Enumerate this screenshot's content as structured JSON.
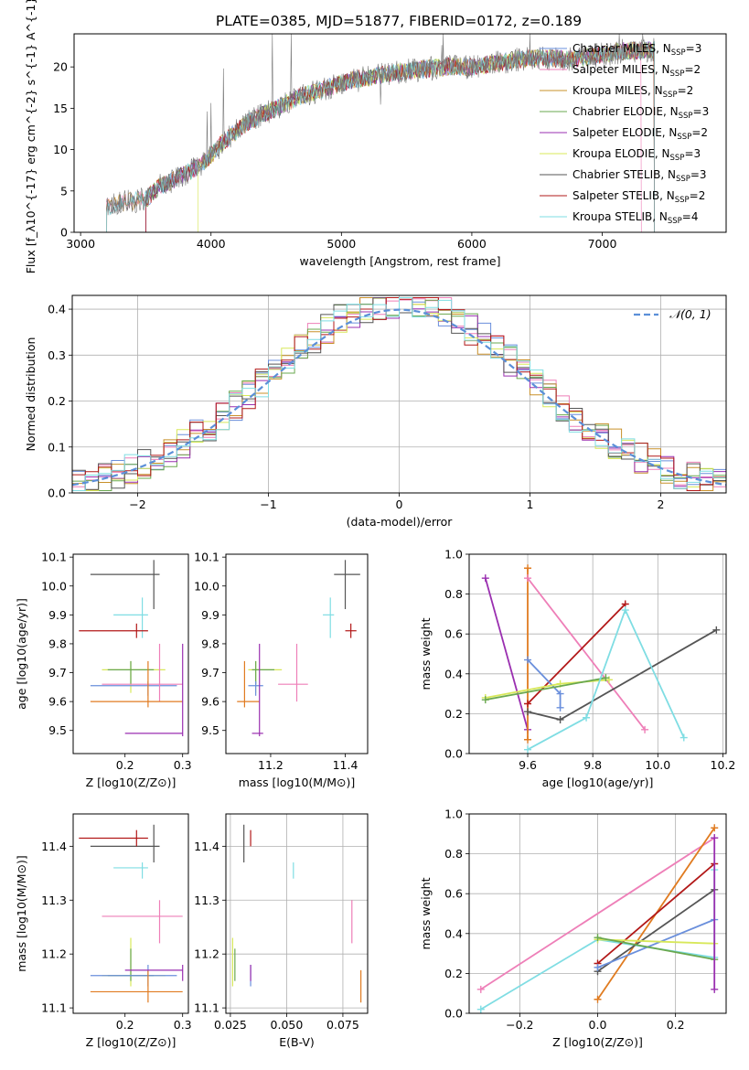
{
  "figure_title": "PLATE=0385, MJD=51877, FIBERID=0172, z=0.189",
  "colors": {
    "Chabrier MILES": "#6a8fdc",
    "Salpeter MILES": "#ee7fb8",
    "Kroupa MILES": "#c8902a",
    "Chabrier ELODIE": "#6aa84f",
    "Salpeter ELODIE": "#9a2fb0",
    "Kroupa ELODIE": "#d8e85a",
    "Chabrier STELIB": "#555555",
    "Salpeter STELIB": "#b21818",
    "Kroupa STELIB": "#7fdde3",
    "normal_curve": "#5b8fd8",
    "orange": "#e07b20"
  },
  "chart_data": [
    {
      "type": "line",
      "name": "spectrum",
      "xlabel": "wavelength [Angstrom, rest frame]",
      "ylabel": "Flux [f_λ10^{-17} erg cm^{-2} s^{-1} A^{-1}]",
      "xlim": [
        2950,
        7950
      ],
      "ylim": [
        0,
        24
      ],
      "xticks": [
        3000,
        4000,
        5000,
        6000,
        7000
      ],
      "yticks": [
        0,
        5,
        10,
        15,
        20
      ],
      "grid": false,
      "legend_position": "right",
      "legend": [
        {
          "label": "Chabrier MILES, N",
          "sub": "SSP",
          "suffix": "=3"
        },
        {
          "label": "Salpeter MILES, N",
          "sub": "SSP",
          "suffix": "=2"
        },
        {
          "label": "Kroupa MILES, N",
          "sub": "SSP",
          "suffix": "=2"
        },
        {
          "label": "Chabrier ELODIE, N",
          "sub": "SSP",
          "suffix": "=3"
        },
        {
          "label": "Salpeter ELODIE, N",
          "sub": "SSP",
          "suffix": "=2"
        },
        {
          "label": "Kroupa ELODIE, N",
          "sub": "SSP",
          "suffix": "=3"
        },
        {
          "label": "Chabrier STELIB, N",
          "sub": "SSP",
          "suffix": "=3"
        },
        {
          "label": "Salpeter STELIB, N",
          "sub": "SSP",
          "suffix": "=2"
        },
        {
          "label": "Kroupa STELIB, N",
          "sub": "SSP",
          "suffix": "=4"
        }
      ],
      "continuum": [
        [
          3200,
          3.0
        ],
        [
          3300,
          3.5
        ],
        [
          3500,
          4.0
        ],
        [
          3600,
          5.5
        ],
        [
          3800,
          7.0
        ],
        [
          3950,
          8.5
        ],
        [
          4100,
          11.0
        ],
        [
          4300,
          13.5
        ],
        [
          4500,
          15.0
        ],
        [
          4700,
          16.5
        ],
        [
          4900,
          17.5
        ],
        [
          5100,
          18.5
        ],
        [
          5300,
          19.0
        ],
        [
          5500,
          19.5
        ],
        [
          5800,
          20.0
        ],
        [
          6000,
          20.0
        ],
        [
          6200,
          20.5
        ],
        [
          6400,
          21.0
        ],
        [
          6600,
          21.0
        ],
        [
          6800,
          21.0
        ],
        [
          7000,
          21.5
        ],
        [
          7200,
          22.0
        ],
        [
          7400,
          22.0
        ]
      ],
      "model_ranges": [
        [
          3500,
          7400
        ],
        [
          3200,
          7300
        ],
        [
          3200,
          7400
        ],
        [
          3500,
          7400
        ],
        [
          3500,
          7400
        ],
        [
          3900,
          7400
        ],
        [
          3200,
          7400
        ],
        [
          3500,
          7400
        ],
        [
          3200,
          7400
        ]
      ]
    },
    {
      "type": "bar",
      "name": "residuals",
      "xlabel": "(data-model)/error",
      "ylabel": "Normed distribution",
      "xlim": [
        -2.5,
        2.5
      ],
      "ylim": [
        0,
        0.43
      ],
      "xticks": [
        -2,
        -1,
        0,
        1,
        2
      ],
      "yticks": [
        0.0,
        0.1,
        0.2,
        0.3,
        0.4
      ],
      "grid": true,
      "legend_position": "top-right",
      "curve_label": "N(0,1)",
      "bin_width": 0.1
    },
    {
      "type": "scatter",
      "name": "age_vs_Z",
      "xlabel": "Z [log10(Z/Z⊙)]",
      "ylabel": "age  [log10(age/yr)]",
      "xlim": [
        0.11,
        0.31
      ],
      "ylim": [
        9.42,
        10.11
      ],
      "xticks": [
        0.2,
        0.3
      ],
      "yticks": [
        9.5,
        9.6,
        9.7,
        9.8,
        9.9,
        10.0,
        10.1
      ],
      "grid": false
    },
    {
      "type": "scatter",
      "name": "age_vs_mass",
      "xlabel": "mass [log10(M/M⊙)]",
      "ylim": [
        9.42,
        10.11
      ],
      "xlim": [
        11.08,
        11.46
      ],
      "xticks": [
        11.2,
        11.4
      ],
      "yticks": [
        9.5,
        9.6,
        9.7,
        9.8,
        9.9,
        10.0,
        10.1
      ],
      "grid": false
    },
    {
      "type": "line",
      "name": "mass_weight_vs_age",
      "xlabel": "age  [log10(age/yr)]",
      "ylabel": "mass weight",
      "xlim": [
        9.42,
        10.21
      ],
      "ylim": [
        0,
        1
      ],
      "xticks": [
        9.6,
        9.8,
        10.0,
        10.2
      ],
      "yticks": [
        0.0,
        0.2,
        0.4,
        0.6,
        0.8,
        1.0
      ],
      "grid": true
    },
    {
      "type": "scatter",
      "name": "mass_vs_Z",
      "xlabel": "Z [log10(Z/Z⊙)]",
      "ylabel": "mass [log10(M/M⊙)]",
      "xlim": [
        0.11,
        0.31
      ],
      "ylim": [
        11.09,
        11.46
      ],
      "xticks": [
        0.2,
        0.3
      ],
      "yticks": [
        11.1,
        11.2,
        11.3,
        11.4
      ],
      "grid": false
    },
    {
      "type": "scatter",
      "name": "mass_vs_ebv",
      "xlabel": "E(B-V)",
      "xlim": [
        0.023,
        0.086
      ],
      "ylim": [
        11.09,
        11.46
      ],
      "xticks": [
        0.025,
        0.05,
        0.075
      ],
      "xticklabels": [
        "0.025",
        "0.050",
        "0.075"
      ],
      "yticks": [
        11.1,
        11.2,
        11.3,
        11.4
      ],
      "grid": true
    },
    {
      "type": "line",
      "name": "mass_weight_vs_Z",
      "xlabel": "Z [log10(Z/Z⊙)]",
      "ylabel": "mass weight",
      "xlim": [
        -0.33,
        0.33
      ],
      "ylim": [
        0,
        1
      ],
      "xticks": [
        -0.2,
        0.0,
        0.2
      ],
      "yticks": [
        0.0,
        0.2,
        0.4,
        0.6,
        0.8,
        1.0
      ],
      "grid": true
    }
  ]
}
